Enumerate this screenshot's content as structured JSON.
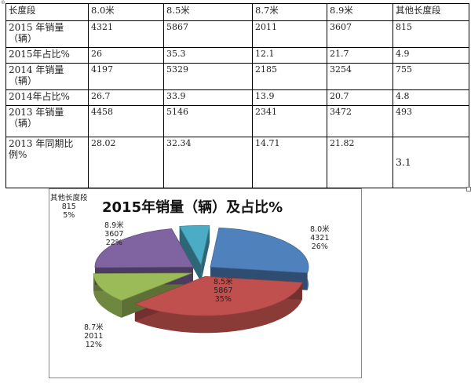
{
  "table": {
    "headers": [
      "长度段",
      "8.0米",
      "8.5米",
      "8.7米",
      "8.9米",
      "其他长度段"
    ],
    "rows": [
      {
        "label": "2015 年销量（辆）",
        "values": [
          "4321",
          "5867",
          "2011",
          "3607",
          "815"
        ]
      },
      {
        "label": "2015年占比%",
        "values": [
          "26",
          "35.3",
          "12.1",
          "21.7",
          "4.9"
        ]
      },
      {
        "label": "2014 年销量（辆）",
        "values": [
          "4197",
          "5329",
          "2185",
          "3254",
          "755"
        ]
      },
      {
        "label": "2014年占比%",
        "values": [
          "26.7",
          "33.9",
          "13.9",
          "20.7",
          "4.8"
        ]
      },
      {
        "label": "2013 年销量（辆）",
        "values": [
          "4458",
          "5146",
          "2341",
          "3472",
          "493"
        ]
      },
      {
        "label": "2013 年同期比例%",
        "values": [
          "28.02",
          "32.34",
          "14.71",
          "21.82",
          "3.1"
        ]
      }
    ]
  },
  "chart_data": {
    "type": "pie",
    "title": "2015年销量（辆）及占比%",
    "slices": [
      {
        "name": "8.0米",
        "value": 4321,
        "percent": "26%",
        "color": "#4f81bd"
      },
      {
        "name": "8.5米",
        "value": 5867,
        "percent": "35%",
        "color": "#c0504d"
      },
      {
        "name": "8.7米",
        "value": 2011,
        "percent": "12%",
        "color": "#9bbb59"
      },
      {
        "name": "8.9米",
        "value": 3607,
        "percent": "22%",
        "color": "#8064a2"
      },
      {
        "name": "其他长度段",
        "value": 815,
        "percent": "5%",
        "color": "#4bacc6"
      }
    ]
  }
}
